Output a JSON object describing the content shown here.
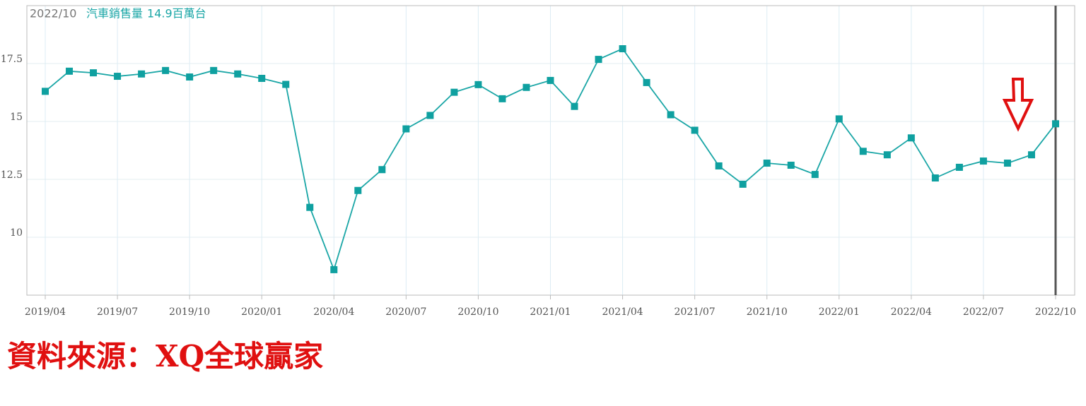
{
  "chart_data": {
    "type": "line",
    "header_date": "2022/10",
    "header_value": "14.9百萬台",
    "source": "資料來源：XQ全球贏家",
    "categories": [
      "2019/04",
      null,
      null,
      "2019/07",
      null,
      null,
      "2019/10",
      null,
      null,
      "2020/01",
      null,
      null,
      "2020/04",
      null,
      null,
      "2020/07",
      null,
      null,
      "2020/10",
      null,
      null,
      "2021/01",
      null,
      null,
      "2021/04",
      null,
      null,
      "2021/07",
      null,
      null,
      "2021/10",
      null,
      null,
      "2022/01",
      null,
      null,
      "2022/04",
      null,
      null,
      "2022/07",
      null,
      null,
      "2022/10"
    ],
    "series": [
      {
        "name": "汽車銷售量",
        "color": "#1aa6a6",
        "values": [
          16.3,
          17.17,
          17.1,
          16.95,
          17.05,
          17.2,
          16.92,
          17.2,
          17.05,
          16.86,
          16.6,
          11.29,
          8.6,
          12.02,
          12.92,
          14.68,
          15.26,
          16.26,
          16.59,
          15.98,
          16.47,
          16.77,
          15.65,
          17.68,
          18.14,
          16.68,
          15.29,
          14.62,
          13.08,
          12.29,
          13.2,
          13.11,
          12.71,
          15.11,
          13.71,
          13.56,
          14.29,
          12.56,
          13.02,
          13.29,
          13.2,
          13.56,
          14.9
        ]
      }
    ],
    "ylim": [
      7.5,
      20
    ],
    "yticks": [
      10,
      12.5,
      15,
      17.5
    ],
    "grid": true
  }
}
